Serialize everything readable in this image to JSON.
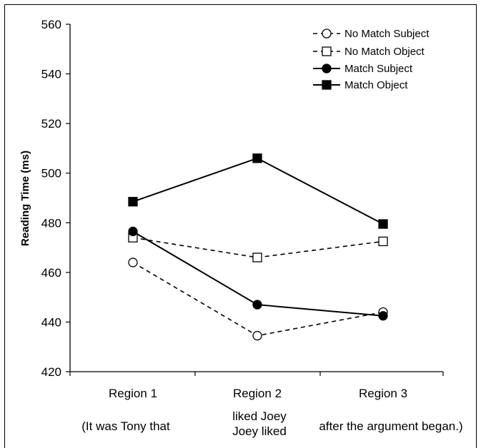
{
  "chart_data": {
    "type": "line",
    "title": "",
    "xlabel": "",
    "ylabel": "Reading Time (ms)",
    "ylim": [
      420,
      560
    ],
    "yticks": [
      420,
      440,
      460,
      480,
      500,
      520,
      540,
      560
    ],
    "categories": [
      "Region 1",
      "Region 2",
      "Region 3"
    ],
    "sublabels": [
      [
        "(It was Tony that"
      ],
      [
        "liked Joey",
        "Joey liked"
      ],
      [
        "after the argument began.)"
      ]
    ],
    "legend_position": "top-right",
    "grid": false,
    "series": [
      {
        "name": "No Match Subject",
        "values": [
          464,
          434.5,
          444
        ],
        "line": "dashed",
        "marker": "circle",
        "filled": false
      },
      {
        "name": "No Match Object",
        "values": [
          474,
          466,
          472.5
        ],
        "line": "dashed",
        "marker": "square",
        "filled": false
      },
      {
        "name": "Match Subject",
        "values": [
          476.5,
          447,
          442.5
        ],
        "line": "solid",
        "marker": "circle",
        "filled": true
      },
      {
        "name": "Match Object",
        "values": [
          488.5,
          506,
          479.5
        ],
        "line": "solid",
        "marker": "square",
        "filled": true
      }
    ]
  }
}
